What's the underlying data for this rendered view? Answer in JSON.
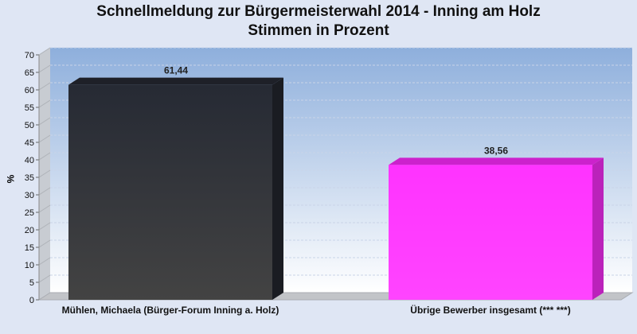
{
  "chart_data": {
    "type": "bar",
    "title": "Schnellmeldung zur Bürgermeisterwahl 2014 - Inning am Holz",
    "subtitle": "Stimmen in Prozent",
    "ylabel": "%",
    "ylim": [
      0,
      70
    ],
    "ytick_step": 5,
    "categories": [
      "Mühlen, Michaela (Bürger-Forum Inning a. Holz)",
      "Übrige Bewerber insgesamt (***  ***)"
    ],
    "values": [
      61.44,
      38.56
    ],
    "value_labels": [
      "61,44",
      "38,56"
    ],
    "colors": [
      "#2e3038",
      "#ff33ff"
    ],
    "grid": true
  }
}
